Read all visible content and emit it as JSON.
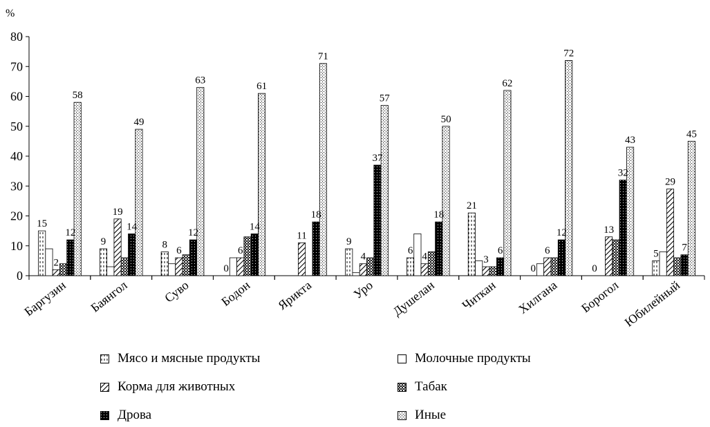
{
  "chart_data": {
    "type": "bar",
    "ylabel": "%",
    "ylim": [
      0,
      80
    ],
    "yticks": [
      0,
      10,
      20,
      30,
      40,
      50,
      60,
      70,
      80
    ],
    "grid": false,
    "legend_position": "bottom",
    "categories": [
      "Баргузин",
      "Баянгол",
      "Суво",
      "Бодон",
      "Ярикта",
      "Уро",
      "Душелан",
      "Читкан",
      "Хилгана",
      "Борогол",
      "Юбилейный"
    ],
    "series": [
      {
        "name": "Мясо и мясные продукты",
        "pattern": "dashed-vertical",
        "values": [
          15,
          9,
          8,
          0,
          0,
          9,
          6,
          21,
          0,
          0,
          5
        ]
      },
      {
        "name": "Молочные продукты",
        "pattern": "plain",
        "values": [
          9,
          3,
          4,
          6,
          0,
          1,
          14,
          5,
          4,
          0,
          8
        ]
      },
      {
        "name": "Корма для животных",
        "pattern": "diagonal",
        "values": [
          2,
          19,
          6,
          6,
          11,
          4,
          4,
          3,
          6,
          13,
          29
        ]
      },
      {
        "name": "Табак",
        "pattern": "checker",
        "values": [
          4,
          6,
          7,
          13,
          0,
          6,
          8,
          3,
          6,
          12,
          6
        ]
      },
      {
        "name": "Дрова",
        "pattern": "black-dotted",
        "values": [
          12,
          14,
          12,
          14,
          18,
          37,
          18,
          6,
          12,
          32,
          7
        ]
      },
      {
        "name": "Иные",
        "pattern": "speckled",
        "values": [
          58,
          49,
          63,
          61,
          71,
          57,
          50,
          62,
          72,
          43,
          45
        ]
      }
    ],
    "data_labels": [
      {
        "category": "Баргузин",
        "labels": [
          "15",
          "",
          "2",
          "",
          "12",
          "58"
        ]
      },
      {
        "category": "Баянгол",
        "labels": [
          "9",
          "",
          "19",
          "",
          "14",
          "49"
        ]
      },
      {
        "category": "Суво",
        "labels": [
          "8",
          "",
          "6",
          "",
          "12",
          "63"
        ]
      },
      {
        "category": "Бодон",
        "labels": [
          "0",
          "",
          "6",
          "",
          "14",
          "61"
        ]
      },
      {
        "category": "Ярикта",
        "labels": [
          "",
          "",
          "11",
          "",
          "18",
          "71"
        ]
      },
      {
        "category": "Уро",
        "labels": [
          "9",
          "",
          "4",
          "",
          "37",
          "57"
        ]
      },
      {
        "category": "Душелан",
        "labels": [
          "6",
          "",
          "4",
          "",
          "18",
          "50"
        ]
      },
      {
        "category": "Читкан",
        "labels": [
          "21",
          "",
          "3",
          "",
          "6",
          "62"
        ]
      },
      {
        "category": "Хилгана",
        "labels": [
          "0",
          "",
          "6",
          "",
          "12",
          "72"
        ]
      },
      {
        "category": "Борогол",
        "labels": [
          "0",
          "",
          "13",
          "",
          "32",
          "43"
        ]
      },
      {
        "category": "Юбилейный",
        "labels": [
          "5",
          "",
          "29",
          "",
          "7",
          "45"
        ]
      }
    ]
  }
}
